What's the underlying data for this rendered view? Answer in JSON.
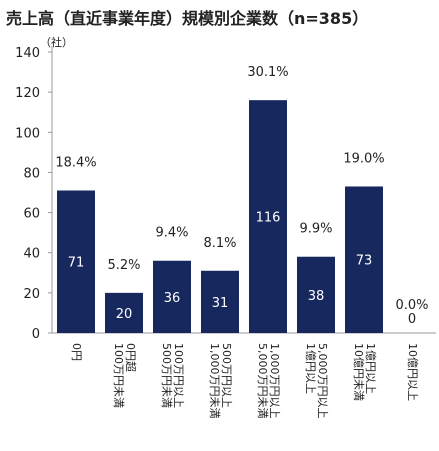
{
  "chart_data": {
    "type": "bar",
    "title": "売上高（直近事業年度）規模別企業数（n=385）",
    "unit_label": "（社）",
    "ylim": [
      0,
      140
    ],
    "yticks": [
      0,
      20,
      40,
      60,
      80,
      100,
      120,
      140
    ],
    "grid": false,
    "bar_color": "#17285E",
    "categories": [
      [
        "0円"
      ],
      [
        "0円超",
        "100万円未満"
      ],
      [
        "100万円以上",
        "500万円未満"
      ],
      [
        "500万円以上",
        "1,000万円未満"
      ],
      [
        "1,000万円以上",
        "5,000万円未満"
      ],
      [
        "5,000万円以上",
        "1億円以上"
      ],
      [
        "1億円以上",
        "10億円未満"
      ],
      [
        "10億円以上"
      ]
    ],
    "values": [
      71,
      20,
      36,
      31,
      116,
      38,
      73,
      0
    ],
    "percentages": [
      "18.4%",
      "5.2%",
      "9.4%",
      "8.1%",
      "30.1%",
      "9.9%",
      "19.0%",
      "0.0%"
    ]
  }
}
